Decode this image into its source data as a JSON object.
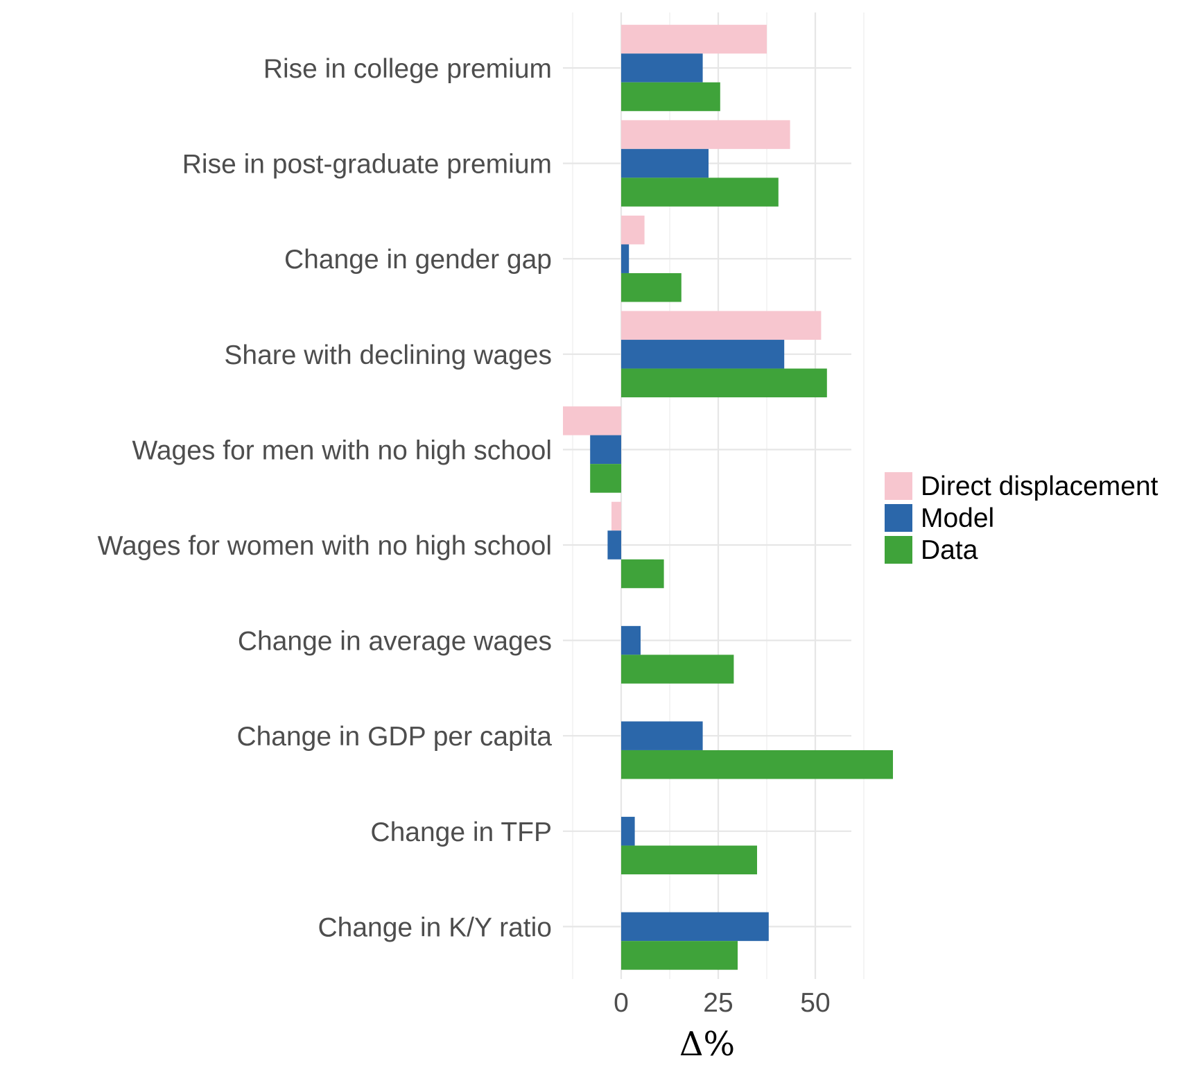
{
  "chart_data": {
    "type": "bar",
    "orientation": "horizontal",
    "title": "",
    "xlabel": "Δ%",
    "ylabel": "",
    "xlim": [
      -15,
      73
    ],
    "xticks": [
      0,
      25,
      50
    ],
    "minor_xticks": [
      -12.5,
      12.5,
      37.5,
      62.5
    ],
    "grid": true,
    "legend_position": "right",
    "categories": [
      "Rise in college premium",
      "Rise in post-graduate premium",
      "Change in gender gap",
      "Share with declining wages",
      "Wages for men with no high school",
      "Wages for women with no high school",
      "Change in average wages",
      "Change in GDP per capita",
      "Change in TFP",
      "Change in K/Y ratio"
    ],
    "series": [
      {
        "name": "Direct displacement",
        "color": "#f7c6cf",
        "values": [
          37.5,
          43.5,
          6.0,
          51.5,
          -15.0,
          -2.5,
          null,
          null,
          null,
          null
        ]
      },
      {
        "name": "Model",
        "color": "#2b67aa",
        "values": [
          21.0,
          22.5,
          2.0,
          42.0,
          -8.0,
          -3.5,
          5.0,
          21.0,
          3.5,
          38.0
        ]
      },
      {
        "name": "Data",
        "color": "#3fa33a",
        "values": [
          25.5,
          40.5,
          15.5,
          53.0,
          -8.0,
          11.0,
          29.0,
          70.0,
          35.0,
          30.0
        ]
      }
    ]
  }
}
